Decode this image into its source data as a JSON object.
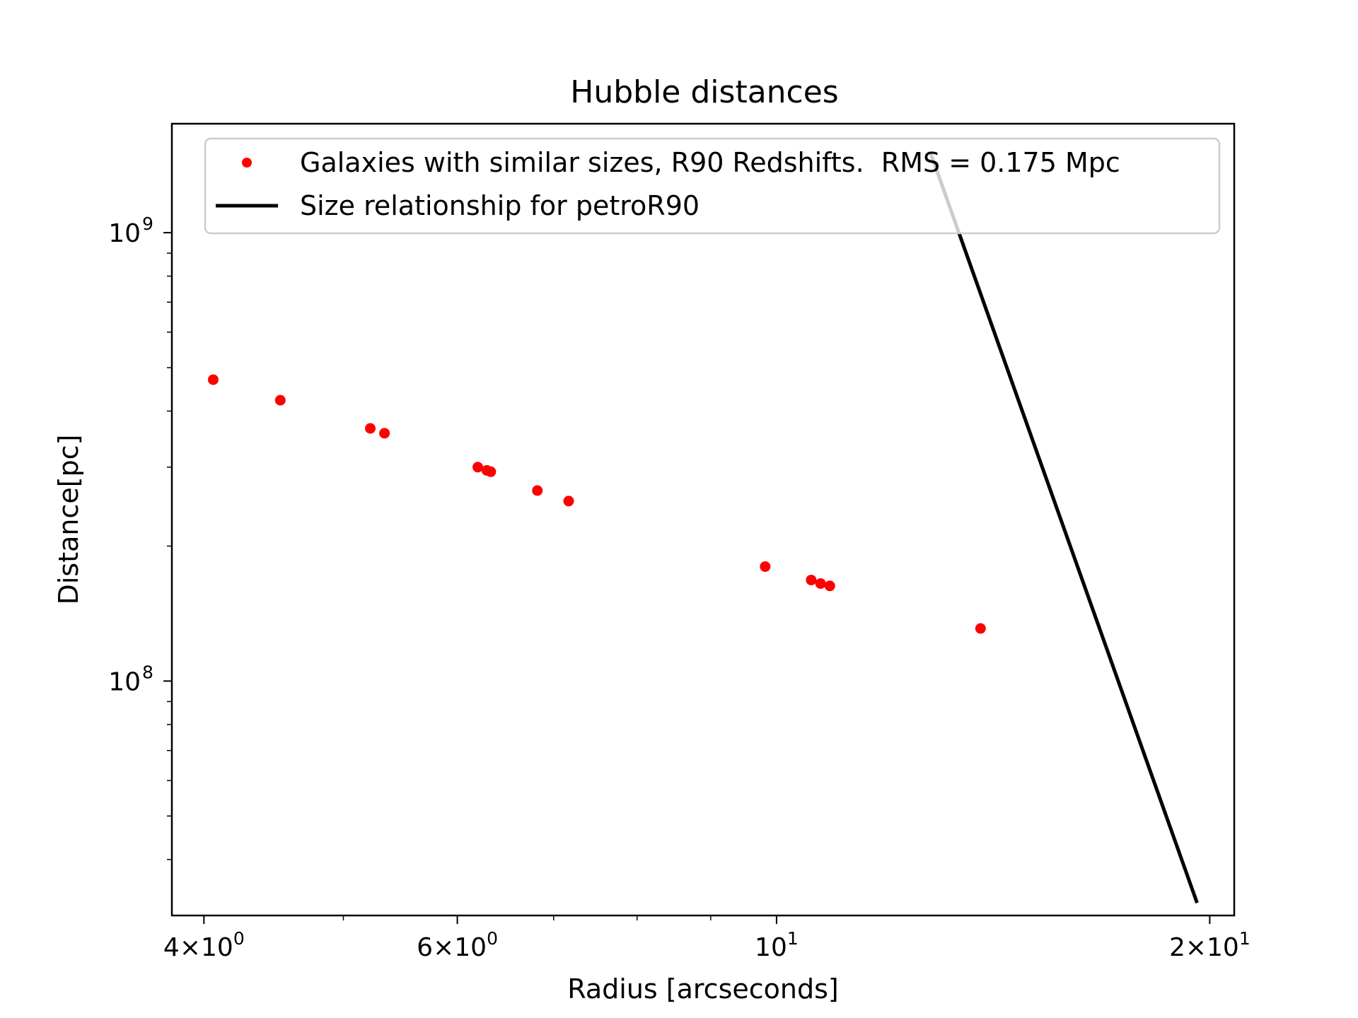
{
  "chart_data": {
    "type": "scatter",
    "title": "Hubble distances",
    "xlabel": "Radius [arcseconds]",
    "ylabel": "Distance[pc]",
    "xscale": "log",
    "yscale": "log",
    "xlim": [
      3.8,
      20.8
    ],
    "ylim": [
      30000000.0,
      1750000000.0
    ],
    "grid": false,
    "legend_position": "top-right",
    "x_ticks": [
      {
        "value": 4,
        "label": "4×10",
        "exp": "0"
      },
      {
        "value": 6,
        "label": "6×10",
        "exp": "0"
      },
      {
        "value": 10,
        "label": "10",
        "exp": "1"
      },
      {
        "value": 20,
        "label": "2×10",
        "exp": "1"
      }
    ],
    "x_minor_ticks": [
      5,
      7,
      8,
      9
    ],
    "y_ticks": [
      {
        "value": 100000000,
        "label": "10",
        "exp": "8"
      },
      {
        "value": 1000000000,
        "label": "10",
        "exp": "9"
      }
    ],
    "y_minor_ticks": [
      40000000,
      50000000,
      60000000,
      70000000,
      80000000,
      90000000,
      200000000,
      300000000,
      400000000,
      500000000,
      600000000,
      700000000,
      800000000,
      900000000
    ],
    "series": [
      {
        "name": "Galaxies with similar sizes, R90 Redshifts.  RMS = 0.175 Mpc",
        "kind": "points",
        "color": "#ff0000",
        "x": [
          4.06,
          4.52,
          5.22,
          5.34,
          6.2,
          6.29,
          6.33,
          6.82,
          7.17,
          9.82,
          10.57,
          10.73,
          10.89,
          13.86
        ],
        "y": [
          470000000,
          423000000,
          366000000,
          357000000,
          300000000,
          295000000,
          293000000,
          266000000,
          252000000,
          180000000,
          168000000,
          165000000,
          163000000,
          131000000
        ]
      },
      {
        "name": "Size relationship for petroR90",
        "kind": "line",
        "color": "#000000",
        "x": [
          12.8,
          19.6
        ],
        "y": [
          1500000000.0,
          32000000.0
        ]
      }
    ]
  }
}
